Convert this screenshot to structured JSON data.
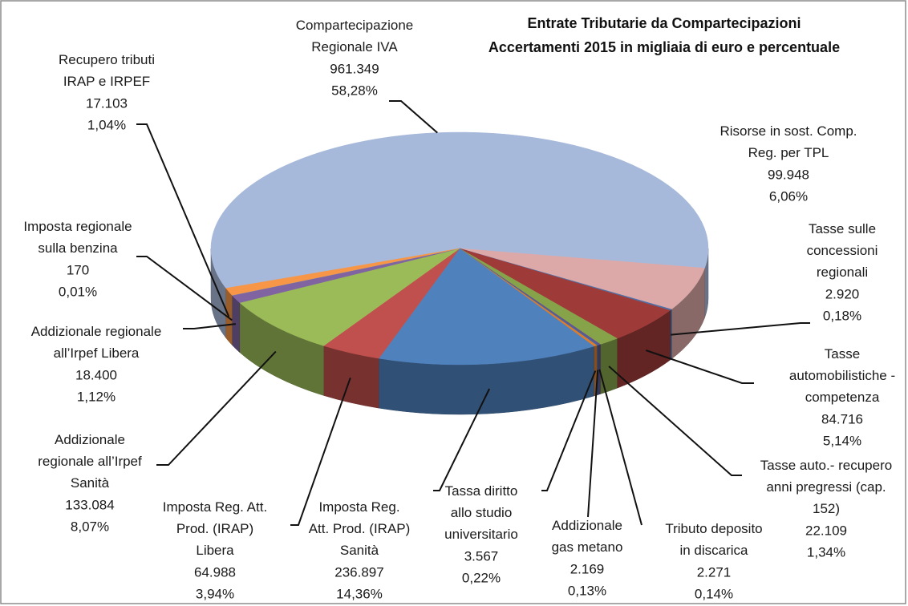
{
  "chart_data": {
    "type": "pie3d",
    "title": "Entrate Tributarie da Compartecipazioni",
    "subtitle": "Accertamenti 2015 in migliaia di euro e percentuale",
    "categories": [
      "Compartecipazione\nRegionale IVA",
      "Risorse in sost. Comp.\nReg. per TPL",
      "Tasse sulle\nconcessioni\nregionali",
      "Tasse\nautomobilistiche -\ncompetenza",
      "Tasse auto.- recupero\nanni pregressi (cap.\n152)",
      "Tributo deposito\nin discarica",
      "Addizionale\ngas metano",
      "Tassa diritto\nallo studio\nuniversitario",
      "Imposta Reg.\nAtt. Prod. (IRAP)\nSanità",
      "Imposta Reg. Att.\nProd. (IRAP)\nLibera",
      "Addizionale\nregionale all’Irpef\nSanità",
      "Addizionale regionale\nall’Irpef Libera",
      "Imposta regionale\nsulla benzina",
      "Recupero tributi\nIRAP e IRPEF"
    ],
    "values": [
      961349,
      99948,
      2920,
      84716,
      22109,
      2271,
      2169,
      3567,
      236897,
      64988,
      133084,
      18400,
      170,
      17103
    ],
    "value_labels": [
      "961.349",
      "99.948",
      "2.920",
      "84.716",
      "22.109",
      "2.271",
      "2.169",
      "3.567",
      "236.897",
      "64.988",
      "133.084",
      "18.400",
      "170",
      "17.103"
    ],
    "percents": [
      58.28,
      6.06,
      0.18,
      5.14,
      1.34,
      0.14,
      0.13,
      0.22,
      14.36,
      3.94,
      8.07,
      1.12,
      0.01,
      1.04
    ],
    "percent_labels": [
      "58,28%",
      "6,06%",
      "0,18%",
      "5,14%",
      "1,34%",
      "0,14%",
      "0,13%",
      "0,22%",
      "14,36%",
      "3,94%",
      "8,07%",
      "1,12%",
      "0,01%",
      "1,04%"
    ],
    "colors": [
      "#a7b9da",
      "#dca9a8",
      "#4f6fa6",
      "#9e3b39",
      "#86a34a",
      "#6a4f8c",
      "#3d6aa3",
      "#e07b2a",
      "#4f81bd",
      "#c0504d",
      "#9bbb59",
      "#8064a2",
      "#4bacc6",
      "#f79646"
    ]
  }
}
